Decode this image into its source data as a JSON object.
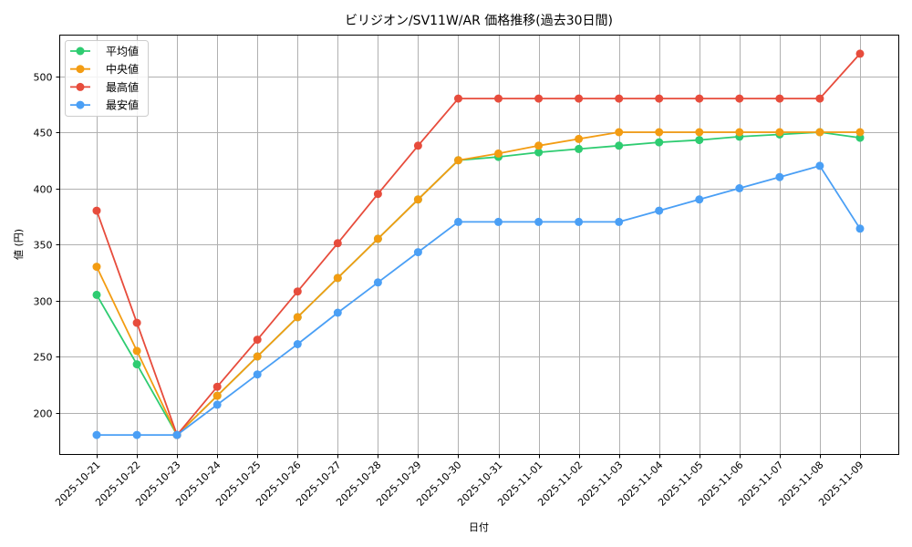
{
  "chart_data": {
    "type": "line",
    "title": "ビリジオン/SV11W/AR 価格推移(過去30日間)",
    "xlabel": "日付",
    "ylabel": "値 (円)",
    "ylim": [
      160,
      535
    ],
    "yticks": [
      200,
      250,
      300,
      350,
      400,
      450,
      500
    ],
    "grid": true,
    "legend_position": "upper left",
    "categories": [
      "2025-10-21",
      "2025-10-22",
      "2025-10-23",
      "2025-10-24",
      "2025-10-25",
      "2025-10-26",
      "2025-10-27",
      "2025-10-28",
      "2025-10-29",
      "2025-10-30",
      "2025-10-31",
      "2025-11-01",
      "2025-11-02",
      "2025-11-03",
      "2025-11-04",
      "2025-11-05",
      "2025-11-06",
      "2025-11-07",
      "2025-11-08",
      "2025-11-09"
    ],
    "series": [
      {
        "name": "平均値",
        "color": "#2ecc71",
        "values": [
          305,
          243,
          180,
          215,
          250,
          285,
          320,
          355,
          390,
          425,
          428,
          432,
          435,
          438,
          441,
          443,
          446,
          448,
          450,
          445
        ]
      },
      {
        "name": "中央値",
        "color": "#f39c12",
        "values": [
          330,
          255,
          180,
          215,
          250,
          285,
          320,
          355,
          390,
          425,
          431,
          438,
          444,
          450,
          450,
          450,
          450,
          450,
          450,
          450
        ]
      },
      {
        "name": "最高値",
        "color": "#e74c3c",
        "values": [
          380,
          280,
          180,
          223,
          265,
          308,
          351,
          395,
          438,
          480,
          480,
          480,
          480,
          480,
          480,
          480,
          480,
          480,
          480,
          520
        ]
      },
      {
        "name": "最安値",
        "color": "#4a9ff5",
        "values": [
          180,
          180,
          180,
          207,
          234,
          261,
          289,
          316,
          343,
          370,
          370,
          370,
          370,
          370,
          380,
          390,
          400,
          410,
          420,
          364
        ]
      }
    ]
  }
}
